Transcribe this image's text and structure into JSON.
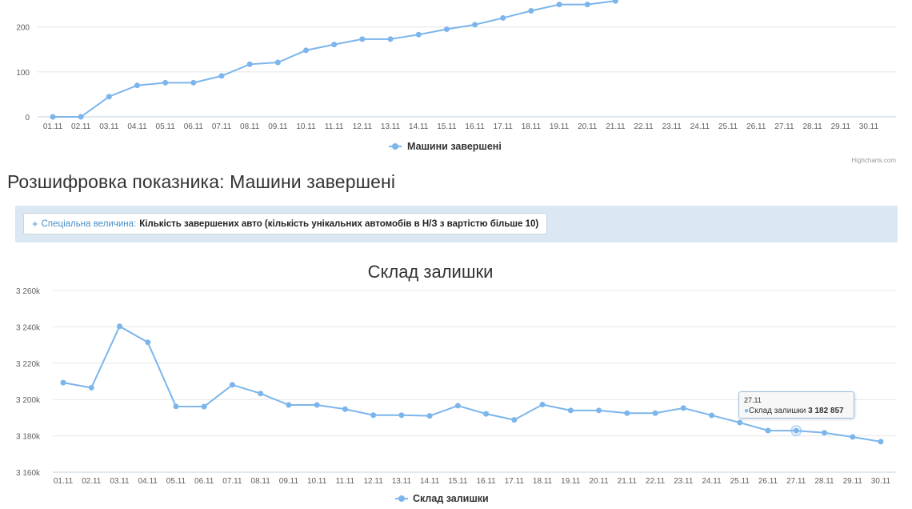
{
  "chart_data": [
    {
      "type": "line",
      "title": "",
      "categories": [
        "01.11",
        "02.11",
        "03.11",
        "04.11",
        "05.11",
        "06.11",
        "07.11",
        "08.11",
        "09.11",
        "10.11",
        "11.11",
        "12.11",
        "13.11",
        "14.11",
        "15.11",
        "16.11",
        "17.11",
        "18.11",
        "19.11",
        "20.11",
        "21.11",
        "22.11",
        "23.11",
        "24.11",
        "25.11",
        "26.11",
        "27.11",
        "28.11",
        "29.11",
        "30.11"
      ],
      "y_ticks": [
        "0",
        "100",
        "200"
      ],
      "series": [
        {
          "name": "Машини  завершені",
          "color": "#7cb5ec",
          "values": [
            0,
            0,
            45,
            70,
            76,
            76,
            91,
            117,
            121,
            148,
            161,
            173,
            173,
            183,
            195,
            205,
            220,
            236,
            250,
            250,
            258,
            null,
            null,
            null,
            null,
            null,
            null,
            null,
            null,
            null
          ]
        }
      ],
      "ylim": [
        0,
        260
      ],
      "grid": true,
      "legend": "bottom-center",
      "credits": "Highcharts.com"
    },
    {
      "type": "line",
      "title": "Склад залишки",
      "categories": [
        "01.11",
        "02.11",
        "03.11",
        "04.11",
        "05.11",
        "06.11",
        "07.11",
        "08.11",
        "09.11",
        "10.11",
        "11.11",
        "12.11",
        "13.11",
        "14.11",
        "15.11",
        "16.11",
        "17.11",
        "18.11",
        "19.11",
        "20.11",
        "21.11",
        "22.11",
        "23.11",
        "24.11",
        "25.11",
        "26.11",
        "27.11",
        "28.11",
        "29.11",
        "30.11"
      ],
      "y_ticks": [
        "3 160k",
        "3 180k",
        "3 200k",
        "3 220k",
        "3 240k",
        "3 260k"
      ],
      "series": [
        {
          "name": "Склад залишки",
          "color": "#7cb5ec",
          "values": [
            3209300,
            3206500,
            3240300,
            3231500,
            3196200,
            3196100,
            3208100,
            3203300,
            3197000,
            3197000,
            3194700,
            3191400,
            3191400,
            3191000,
            3196600,
            3192100,
            3188800,
            3197200,
            3194000,
            3194000,
            3192500,
            3192500,
            3195300,
            3191300,
            3187300,
            3182900,
            3182857,
            3181700,
            3179400,
            3176800
          ]
        }
      ],
      "ylim": [
        3160000,
        3260000
      ],
      "grid": true,
      "legend": "bottom-center",
      "tooltip": {
        "category": "27.11",
        "series": "Склад залишки",
        "value": "3 182 857"
      }
    }
  ],
  "section": {
    "heading": "Розшифровка показника: Машини  завершені"
  },
  "filter": {
    "plus": "+",
    "label": "Спеціальна величина:",
    "value": "Кількість завершених авто (кількість унікальних автомобів в Н/З з вартістю більше 10)"
  }
}
